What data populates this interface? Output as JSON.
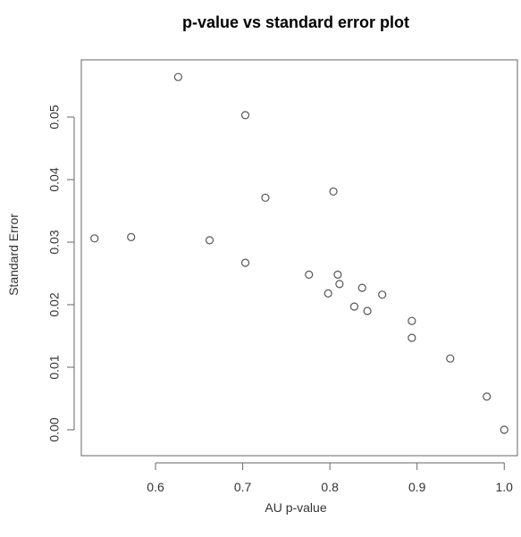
{
  "chart_data": {
    "type": "scatter",
    "title": "p-value vs standard error plot",
    "xlabel": "AU p-value",
    "ylabel": "Standard Error",
    "xlim": [
      0.52,
      1.01
    ],
    "ylim": [
      -0.003,
      0.058
    ],
    "xticks": [
      0.6,
      0.7,
      0.8,
      0.9,
      1.0
    ],
    "xtick_labels": [
      "0.6",
      "0.7",
      "0.8",
      "0.9",
      "1.0"
    ],
    "yticks": [
      0.0,
      0.01,
      0.02,
      0.03,
      0.04,
      0.05
    ],
    "ytick_labels": [
      "0.00",
      "0.01",
      "0.02",
      "0.03",
      "0.04",
      "0.05"
    ],
    "grid": false,
    "marker": "open-circle",
    "colors": {
      "point": "#555555",
      "frame": "#666666",
      "text": "#333333"
    },
    "points": [
      {
        "x": 0.53,
        "y": 0.0306
      },
      {
        "x": 0.572,
        "y": 0.0308
      },
      {
        "x": 0.626,
        "y": 0.0564
      },
      {
        "x": 0.662,
        "y": 0.0303
      },
      {
        "x": 0.703,
        "y": 0.0503
      },
      {
        "x": 0.703,
        "y": 0.0267
      },
      {
        "x": 0.726,
        "y": 0.0371
      },
      {
        "x": 0.776,
        "y": 0.0248
      },
      {
        "x": 0.798,
        "y": 0.0218
      },
      {
        "x": 0.804,
        "y": 0.0381
      },
      {
        "x": 0.809,
        "y": 0.0248
      },
      {
        "x": 0.811,
        "y": 0.0233
      },
      {
        "x": 0.828,
        "y": 0.0197
      },
      {
        "x": 0.837,
        "y": 0.0227
      },
      {
        "x": 0.843,
        "y": 0.019
      },
      {
        "x": 0.86,
        "y": 0.0216
      },
      {
        "x": 0.894,
        "y": 0.0174
      },
      {
        "x": 0.894,
        "y": 0.0147
      },
      {
        "x": 0.938,
        "y": 0.0114
      },
      {
        "x": 0.98,
        "y": 0.0053
      },
      {
        "x": 1.0,
        "y": 0.0
      }
    ]
  }
}
